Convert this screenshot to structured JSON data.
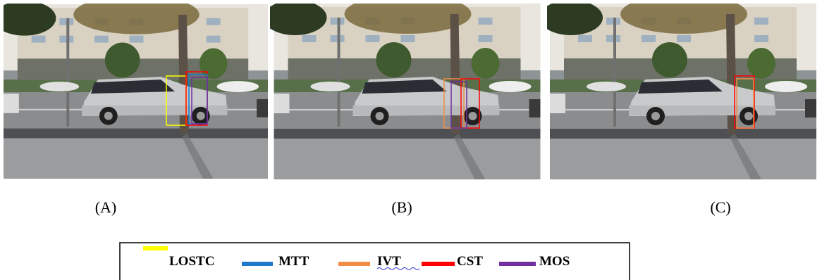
{
  "panels": [
    {
      "label": "(A)"
    },
    {
      "label": "(B)"
    },
    {
      "label": "(C)"
    }
  ],
  "legend": {
    "items": [
      {
        "name": "LOSTC",
        "color": "#ffff00"
      },
      {
        "name": "MTT",
        "color": "#1f78c8"
      },
      {
        "name": "IVT",
        "color": "#f08c46"
      },
      {
        "name": "CST",
        "color": "#ff0000"
      },
      {
        "name": "MOS",
        "color": "#7030a0"
      }
    ]
  }
}
